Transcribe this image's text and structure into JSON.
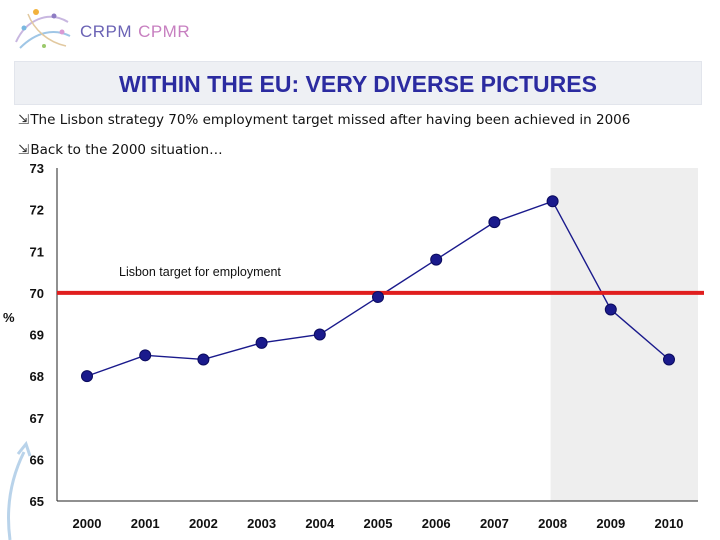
{
  "header": {
    "logo_primary": "CRPM",
    "logo_secondary": "CPMR",
    "title": "WITHIN THE EU: VERY DIVERSE PICTURES"
  },
  "bullets": [
    "The Lisbon strategy 70% employment target missed after having been achieved in 2006",
    "Back to the 2000 situation…"
  ],
  "colors": {
    "title": "#2b2ba0",
    "series": "#1a1a8c",
    "target_line": "#e01e1e",
    "shade": "#eeeeee"
  },
  "chart_data": {
    "type": "line",
    "ylabel": "%",
    "ylim": [
      65,
      73
    ],
    "yticks": [
      65,
      66,
      67,
      68,
      69,
      70,
      71,
      72,
      73
    ],
    "categories": [
      "2000",
      "2001",
      "2002",
      "2003",
      "2004",
      "2005",
      "2006",
      "2007",
      "2008",
      "2009",
      "2010"
    ],
    "series": [
      {
        "values": [
          68.0,
          68.5,
          68.4,
          68.8,
          69.0,
          69.9,
          70.8,
          71.7,
          72.2,
          69.6,
          68.4
        ]
      }
    ],
    "reference_line": {
      "value": 70,
      "label": "Lisbon target for employment"
    },
    "shaded_from": "2008",
    "shaded_to": "2010",
    "grid": false
  }
}
